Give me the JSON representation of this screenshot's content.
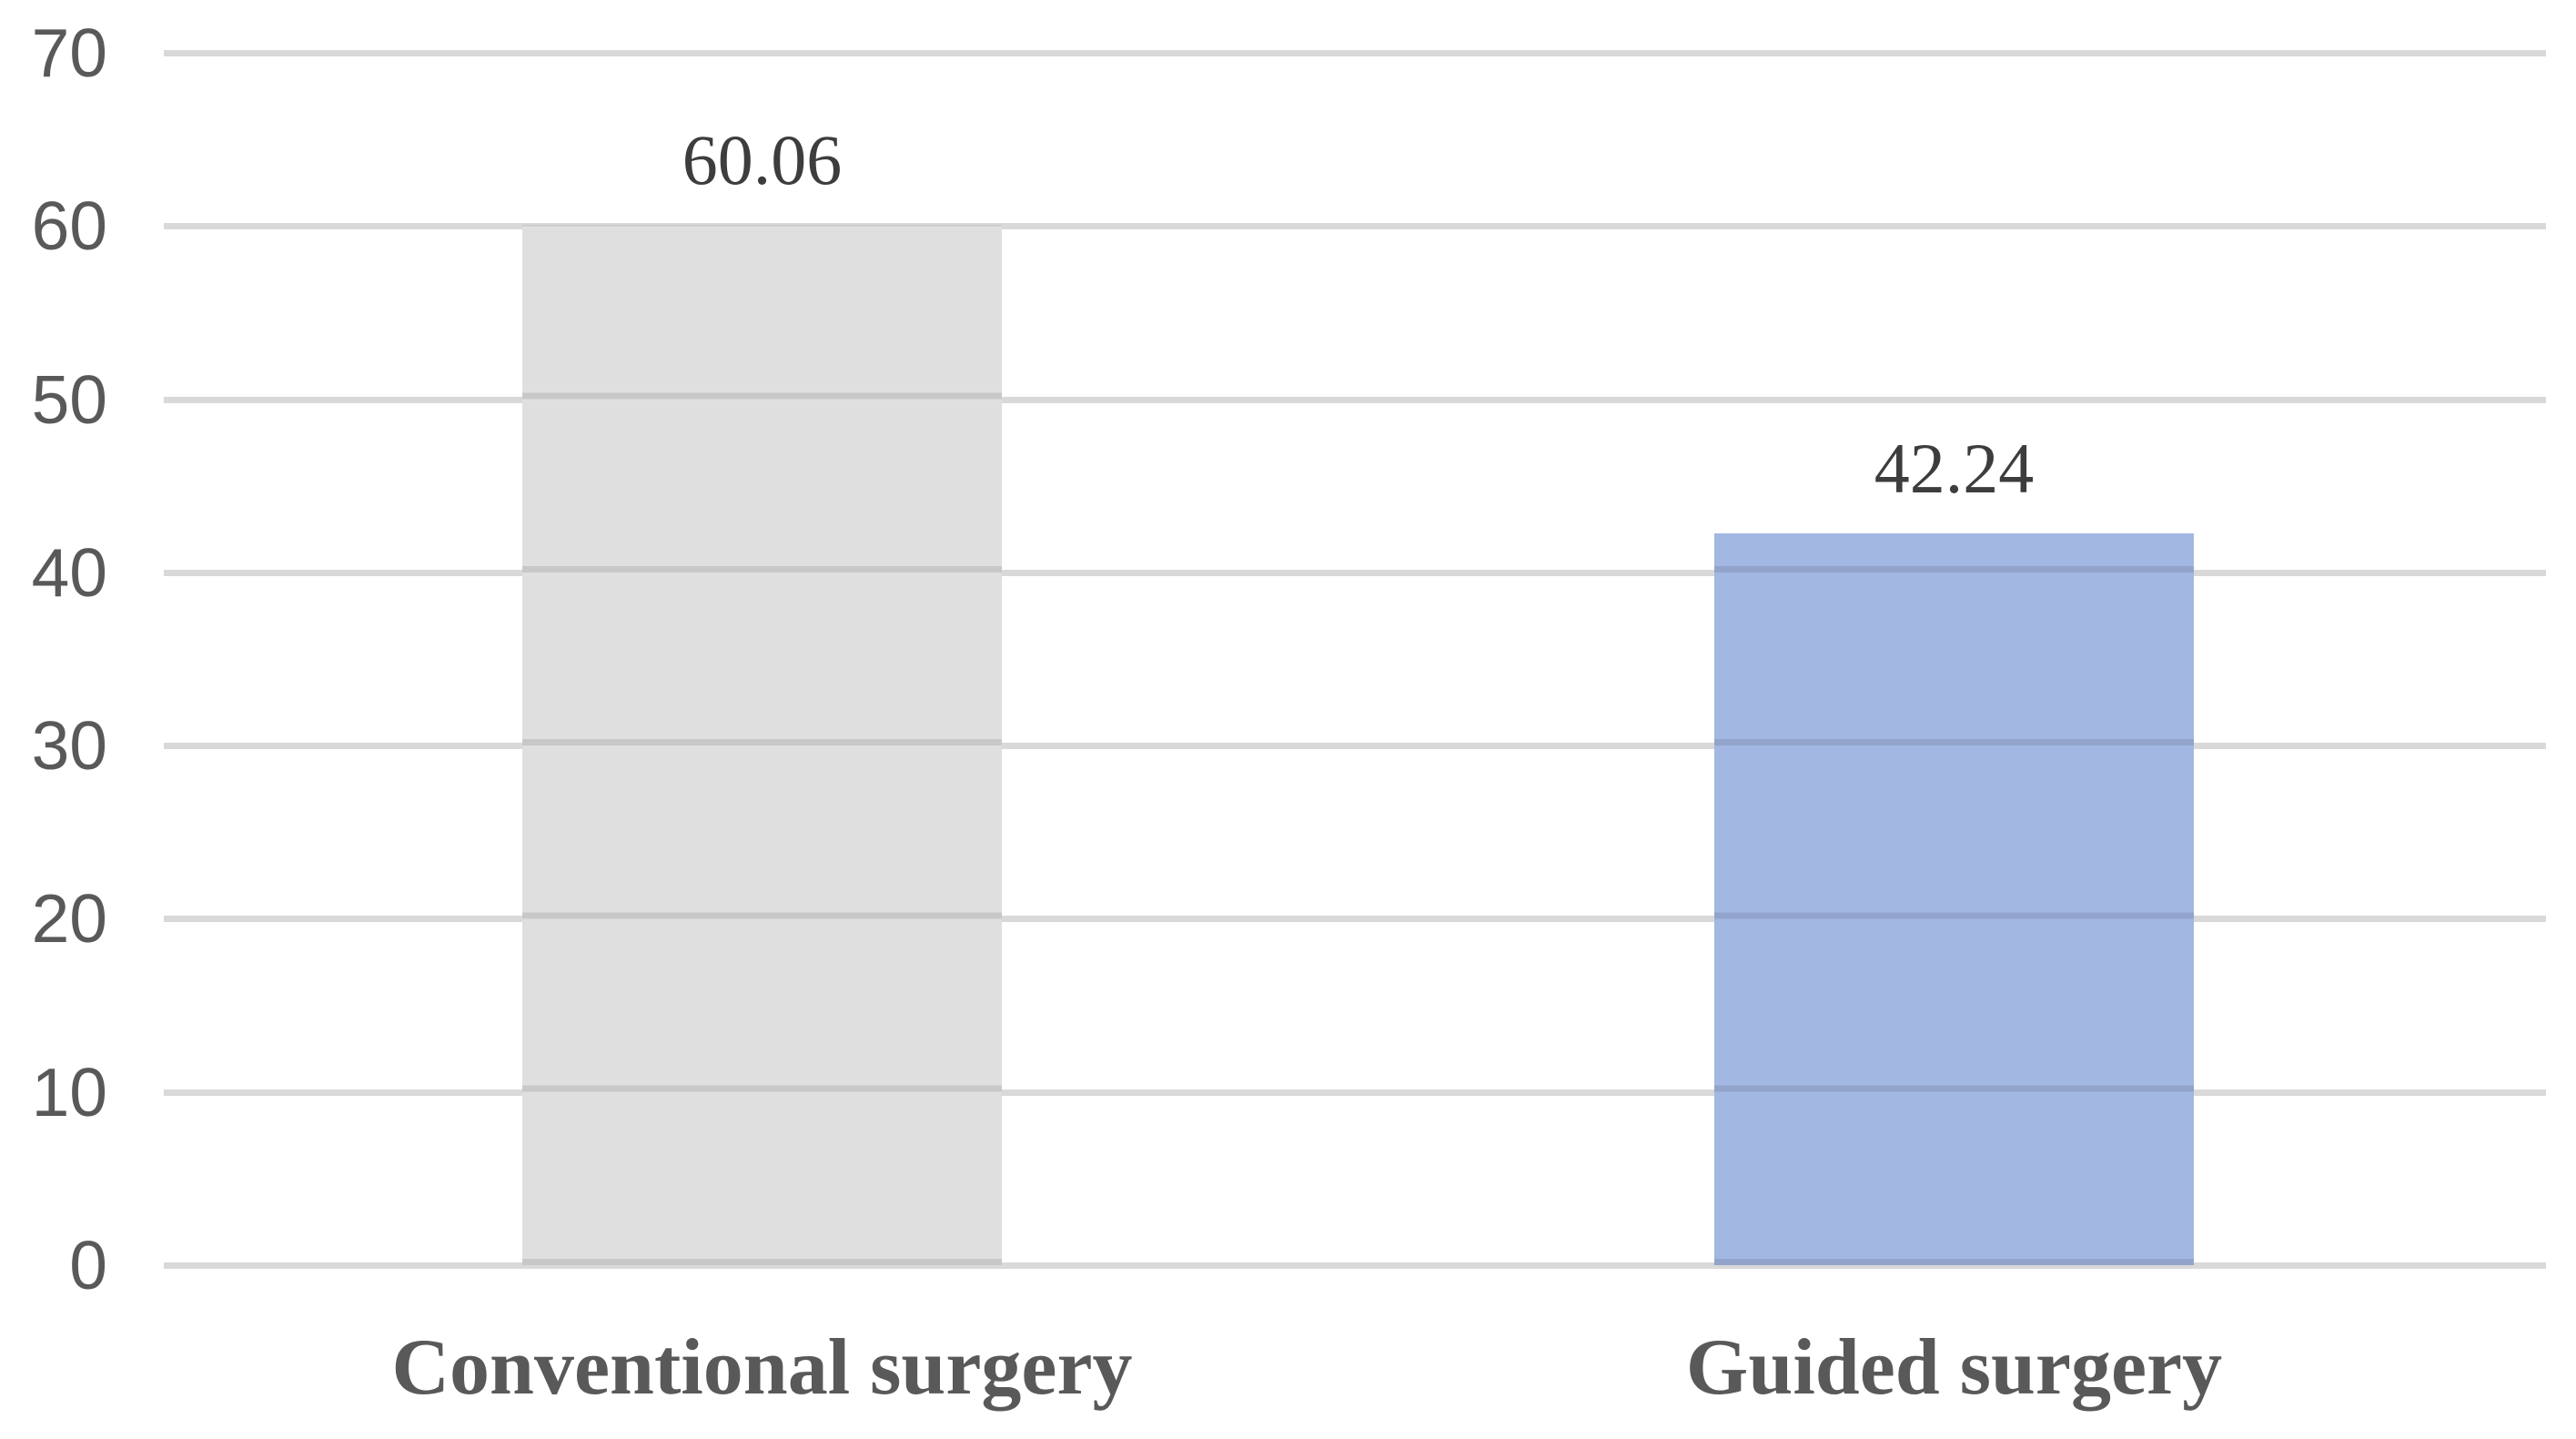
{
  "chart_data": {
    "type": "bar",
    "categories": [
      "Conventional surgery",
      "Guided surgery"
    ],
    "values": [
      60.06,
      42.24
    ],
    "data_labels": [
      "60.06",
      "42.24"
    ],
    "title": "",
    "xlabel": "",
    "ylabel": "",
    "ylim": [
      0,
      70
    ],
    "yticks": [
      0,
      10,
      20,
      30,
      40,
      50,
      60,
      70
    ],
    "ytick_labels": [
      "0",
      "10",
      "20",
      "30",
      "40",
      "50",
      "60",
      "70"
    ],
    "grid": "horizontal gridlines on, drawn through bars",
    "legend": "none",
    "colors": {
      "bar_conventional": "#dfdfdf",
      "bar_guided": "#a2b7e2",
      "gridline": "#d9d9d9",
      "gridline_over_bar_shade": "rgba(0,0,0,0.10)",
      "y_tick_label": "#595959",
      "data_label": "#3d3d3d",
      "category_label": "#595959",
      "background": "#ffffff"
    }
  }
}
